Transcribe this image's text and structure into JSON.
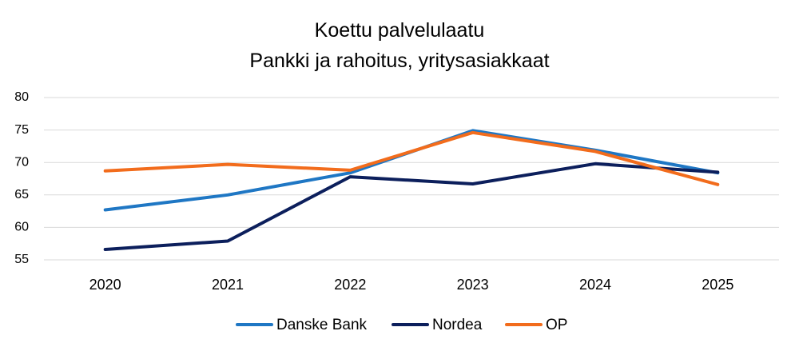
{
  "chart_data": {
    "type": "line",
    "title": "Koettu palvelulaatu",
    "subtitle": "Pankki ja rahoitus, yritysasiakkaat",
    "categories": [
      "2020",
      "2021",
      "2022",
      "2023",
      "2024",
      "2025"
    ],
    "yticks": [
      "80",
      "75",
      "70",
      "65",
      "60",
      "55"
    ],
    "ylim": [
      55,
      80
    ],
    "grid": true,
    "legend_position": "bottom",
    "series": [
      {
        "name": "Danske Bank",
        "color": "#1f77c4",
        "values": [
          62.7,
          65.0,
          68.4,
          74.9,
          71.9,
          68.4
        ]
      },
      {
        "name": "Nordea",
        "color": "#0c1f5c",
        "values": [
          56.6,
          57.9,
          67.8,
          66.7,
          69.8,
          68.5
        ]
      },
      {
        "name": "OP",
        "color": "#f26c1c",
        "values": [
          68.7,
          69.7,
          68.8,
          74.6,
          71.7,
          66.6
        ]
      }
    ]
  }
}
